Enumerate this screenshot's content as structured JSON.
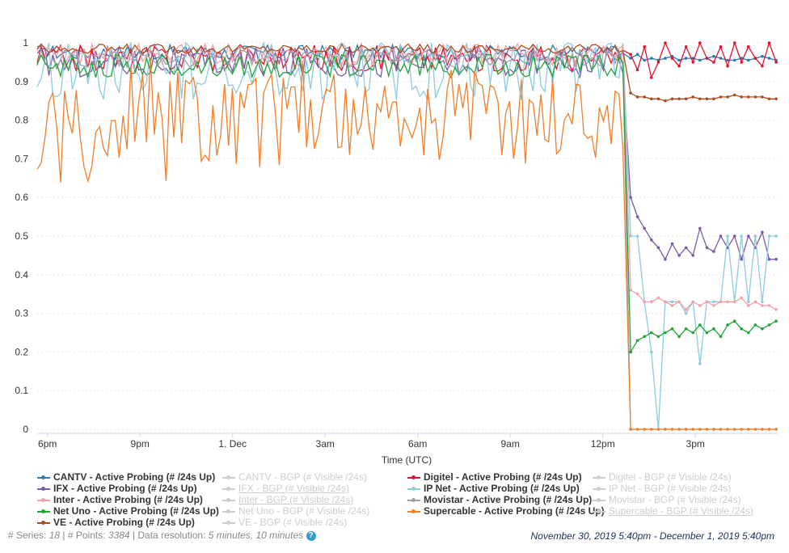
{
  "chart_data": {
    "type": "line",
    "xlabel": "Time (UTC)",
    "ylabel": "",
    "ylim": [
      0,
      1
    ],
    "yticks": [
      "0",
      "0.1",
      "0.2",
      "0.3",
      "0.4",
      "0.5",
      "0.6",
      "0.7",
      "0.8",
      "0.9",
      "1"
    ],
    "xticks": [
      {
        "label": "6pm",
        "t": 18
      },
      {
        "label": "9pm",
        "t": 21
      },
      {
        "label": "1. Dec",
        "t": 24
      },
      {
        "label": "3am",
        "t": 27
      },
      {
        "label": "6am",
        "t": 30
      },
      {
        "label": "9am",
        "t": 33
      },
      {
        "label": "12pm",
        "t": 36
      },
      {
        "label": "3pm",
        "t": 39
      }
    ],
    "xrange": [
      17.667,
      41.667
    ],
    "grid": true,
    "legend_position": "bottom",
    "drop_time": 36.9,
    "series": [
      {
        "name": "CANTV - Active Probing (# /24s Up)",
        "color": "#2a7ab5",
        "visible": true,
        "pre": 0.975,
        "pre_noise": 0.02,
        "post": [
          0.96,
          0.97,
          0.955,
          0.96,
          0.955,
          0.96,
          0.965,
          0.955,
          0.96,
          0.96,
          0.955,
          0.96,
          0.965,
          0.96,
          0.955,
          0.955,
          0.96,
          0.955,
          0.96,
          0.965,
          0.96,
          0.955
        ]
      },
      {
        "name": "CANTV - BGP (# Visible /24s)",
        "color": "#cccccc",
        "visible": false
      },
      {
        "name": "Digitel - Active Probing (# /24s Up)",
        "color": "#e3112e",
        "visible": true,
        "pre": 0.96,
        "pre_noise": 0.035,
        "post": [
          0.97,
          0.93,
          0.99,
          0.91,
          0.95,
          1.0,
          0.96,
          0.94,
          0.99,
          0.95,
          1.0,
          0.96,
          0.95,
          0.99,
          0.94,
          1.0,
          0.95,
          0.99,
          0.96,
          0.94,
          1.0,
          0.95
        ]
      },
      {
        "name": "Digitel - BGP (# Visible /24s)",
        "color": "#cccccc",
        "visible": false
      },
      {
        "name": "IFX - Active Probing (# /24s Up)",
        "color": "#7a5aa8",
        "visible": true,
        "pre": 0.95,
        "pre_noise": 0.04,
        "post": [
          0.6,
          0.55,
          0.52,
          0.49,
          0.47,
          0.44,
          0.48,
          0.45,
          0.47,
          0.45,
          0.52,
          0.47,
          0.46,
          0.5,
          0.47,
          0.5,
          0.44,
          0.5,
          0.47,
          0.51,
          0.44,
          0.44
        ]
      },
      {
        "name": "IFX - BGP (# Visible /24s)",
        "color": "#cccccc",
        "visible": false,
        "selected": true
      },
      {
        "name": "IP Net - Active Probing (# /24s Up)",
        "color": "#8ccbe0",
        "visible": true,
        "pre": 0.93,
        "pre_noise": 0.08,
        "post": [
          0.5,
          0.5,
          0.33,
          0.2,
          0.0,
          0.33,
          0.33,
          0.33,
          0.3,
          0.33,
          0.17,
          0.33,
          0.33,
          0.33,
          0.5,
          0.33,
          0.5,
          0.33,
          0.5,
          0.33,
          0.5,
          0.5
        ]
      },
      {
        "name": "IP Net - BGP (# Visible /24s)",
        "color": "#cccccc",
        "visible": false
      },
      {
        "name": "Inter - Active Probing (# /24s Up)",
        "color": "#f4a0a8",
        "visible": true,
        "pre": 0.97,
        "pre_noise": 0.03,
        "post": [
          0.36,
          0.35,
          0.33,
          0.33,
          0.34,
          0.33,
          0.32,
          0.33,
          0.31,
          0.33,
          0.32,
          0.33,
          0.32,
          0.33,
          0.33,
          0.33,
          0.34,
          0.32,
          0.33,
          0.32,
          0.32,
          0.31
        ]
      },
      {
        "name": "Inter - BGP (# Visible /24s)",
        "color": "#cccccc",
        "visible": false,
        "selected": true
      },
      {
        "name": "Movistar - Active Probing (# /24s Up)",
        "color": "#9aa2ad",
        "visible": true,
        "pre": 0.96,
        "pre_noise": 0.025,
        "post": [
          0.0,
          0.0,
          0.0,
          0.0,
          0.0,
          0.0,
          0.0,
          0.0,
          0.0,
          0.0,
          0.0,
          0.0,
          0.0,
          0.0,
          0.0,
          0.0,
          0.0,
          0.0,
          0.0,
          0.0,
          0.0,
          0.0
        ]
      },
      {
        "name": "Movistar - BGP (# Visible /24s)",
        "color": "#cccccc",
        "visible": false
      },
      {
        "name": "Net Uno - Active Probing (# /24s Up)",
        "color": "#21a33a",
        "visible": true,
        "pre": 0.94,
        "pre_noise": 0.03,
        "post": [
          0.2,
          0.23,
          0.24,
          0.25,
          0.24,
          0.25,
          0.26,
          0.24,
          0.26,
          0.25,
          0.27,
          0.25,
          0.26,
          0.24,
          0.27,
          0.28,
          0.26,
          0.25,
          0.27,
          0.26,
          0.27,
          0.28
        ]
      },
      {
        "name": "Net Uno - BGP (# Visible /24s)",
        "color": "#cccccc",
        "visible": false
      },
      {
        "name": "Supercable - Active Probing (# /24s Up)",
        "color": "#f07f2b",
        "visible": true,
        "pre": 0.8,
        "pre_noise": 0.13,
        "post": [
          0.0,
          0.0,
          0.0,
          0.0,
          0.0,
          0.0,
          0.0,
          0.0,
          0.0,
          0.0,
          0.0,
          0.0,
          0.0,
          0.0,
          0.0,
          0.0,
          0.0,
          0.0,
          0.0,
          0.0,
          0.0,
          0.0
        ]
      },
      {
        "name": "Supercable - BGP (# Visible /24s)",
        "color": "#cccccc",
        "visible": false,
        "selected": true
      },
      {
        "name": "VE - Active Probing (# /24s Up)",
        "color": "#b04a1e",
        "visible": true,
        "pre": 0.985,
        "pre_noise": 0.012,
        "post": [
          0.87,
          0.86,
          0.86,
          0.855,
          0.855,
          0.85,
          0.855,
          0.855,
          0.855,
          0.86,
          0.855,
          0.855,
          0.855,
          0.86,
          0.86,
          0.865,
          0.86,
          0.86,
          0.86,
          0.86,
          0.855,
          0.855
        ]
      },
      {
        "name": "VE - BGP (# Visible /24s)",
        "color": "#cccccc",
        "visible": false
      }
    ]
  },
  "legend_rows": [
    [
      0,
      1,
      2,
      3
    ],
    [
      4,
      5,
      6,
      7
    ],
    [
      8,
      9,
      10,
      11
    ],
    [
      12,
      13,
      14,
      15
    ],
    [
      16,
      17
    ]
  ],
  "footer": {
    "series_label": "# Series: ",
    "series_value": "18",
    "points_label": " | # Points: ",
    "points_value": "3384",
    "resolution_label": " | Data resolution: ",
    "resolution_value": "5 minutes, 10 minutes",
    "help_icon": "?",
    "range": "November 30, 2019 5:40pm - December 1, 2019 5:40pm"
  }
}
